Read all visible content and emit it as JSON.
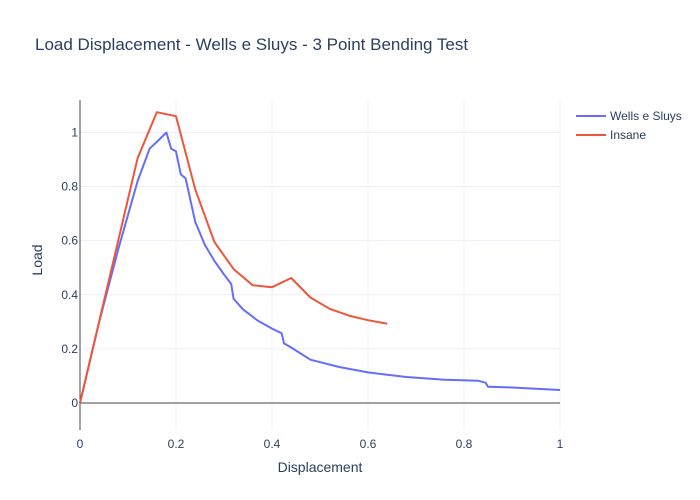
{
  "chart_data": {
    "type": "line",
    "title": "Load Displacement - Wells e Sluys - 3 Point Bending Test",
    "xlabel": "Displacement",
    "ylabel": "Load",
    "xlim": [
      0,
      1
    ],
    "ylim": [
      -0.1,
      1.12
    ],
    "xticks": [
      0,
      0.2,
      0.4,
      0.6,
      0.8,
      1
    ],
    "xtick_labels": [
      "0",
      "0.2",
      "0.4",
      "0.6",
      "0.8",
      "1"
    ],
    "yticks": [
      0,
      0.2,
      0.4,
      0.6,
      0.8,
      1
    ],
    "ytick_labels": [
      "0",
      "0.2",
      "0.4",
      "0.6",
      "0.8",
      "1"
    ],
    "grid": true,
    "legend_position": "top-right",
    "series": [
      {
        "name": "Wells e Sluys",
        "color": "#636efa",
        "x": [
          0,
          0.04,
          0.08,
          0.12,
          0.145,
          0.16,
          0.18,
          0.19,
          0.2,
          0.21,
          0.22,
          0.24,
          0.26,
          0.28,
          0.3,
          0.315,
          0.32,
          0.34,
          0.37,
          0.4,
          0.42,
          0.425,
          0.44,
          0.48,
          0.54,
          0.6,
          0.68,
          0.76,
          0.83,
          0.845,
          0.85,
          0.9,
          1.0
        ],
        "y": [
          0,
          0.3,
          0.57,
          0.82,
          0.94,
          0.965,
          1.0,
          0.94,
          0.93,
          0.845,
          0.83,
          0.67,
          0.585,
          0.525,
          0.475,
          0.44,
          0.385,
          0.345,
          0.305,
          0.275,
          0.258,
          0.22,
          0.205,
          0.16,
          0.133,
          0.113,
          0.096,
          0.086,
          0.082,
          0.075,
          0.06,
          0.057,
          0.048
        ]
      },
      {
        "name": "Insane",
        "color": "#ef553b",
        "x": [
          0,
          0.12,
          0.16,
          0.2,
          0.24,
          0.28,
          0.32,
          0.36,
          0.4,
          0.44,
          0.48,
          0.52,
          0.56,
          0.6,
          0.64
        ],
        "y": [
          0,
          0.905,
          1.075,
          1.06,
          0.79,
          0.595,
          0.495,
          0.435,
          0.428,
          0.462,
          0.39,
          0.348,
          0.323,
          0.306,
          0.293
        ]
      }
    ]
  }
}
